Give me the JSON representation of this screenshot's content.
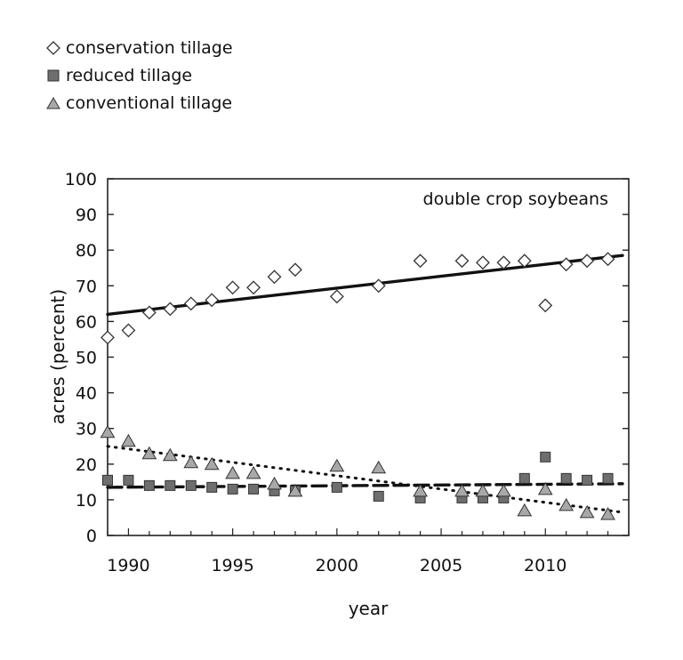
{
  "chart_data": {
    "type": "scatter",
    "title": "",
    "annotation": "double crop soybeans",
    "xlabel": "year",
    "ylabel": "acres (percent)",
    "xlim": [
      1989,
      2014
    ],
    "ylim": [
      0,
      100
    ],
    "xticks": [
      1990,
      1995,
      2000,
      2005,
      2010
    ],
    "yticks": [
      0,
      10,
      20,
      30,
      40,
      50,
      60,
      70,
      80,
      90,
      100
    ],
    "legend_position": "top-left",
    "series": [
      {
        "name": "conservation tillage",
        "marker": "diamond",
        "color": "#ffffff",
        "x": [
          1989,
          1990,
          1991,
          1992,
          1993,
          1994,
          1995,
          1996,
          1997,
          1998,
          2000,
          2002,
          2004,
          2006,
          2007,
          2008,
          2009,
          2010,
          2011,
          2012,
          2013
        ],
        "y": [
          55.5,
          57.5,
          62.5,
          63.5,
          65,
          66,
          69.5,
          69.5,
          72.5,
          74.5,
          67,
          70,
          77,
          77,
          76.5,
          76.5,
          77,
          64.5,
          76,
          77,
          77.5
        ],
        "trend": {
          "style": "solid",
          "y_start": 62,
          "y_end": 78.5
        }
      },
      {
        "name": "reduced tillage",
        "marker": "square",
        "color": "#6e6e6e",
        "x": [
          1989,
          1990,
          1991,
          1992,
          1993,
          1994,
          1995,
          1996,
          1997,
          1998,
          2000,
          2002,
          2004,
          2006,
          2007,
          2008,
          2009,
          2010,
          2011,
          2012,
          2013
        ],
        "y": [
          15.5,
          15.5,
          14,
          14,
          14,
          13.5,
          13,
          13,
          12.5,
          12.5,
          13.5,
          11,
          10.5,
          10.5,
          10.5,
          10.5,
          16,
          22,
          16,
          15.5,
          16
        ],
        "trend": {
          "style": "dashed",
          "y_start": 13.5,
          "y_end": 14.5
        }
      },
      {
        "name": "conventional tillage",
        "marker": "triangle",
        "color": "#a8a8a8",
        "x": [
          1989,
          1990,
          1991,
          1992,
          1993,
          1994,
          1995,
          1996,
          1997,
          1998,
          2000,
          2002,
          2004,
          2006,
          2007,
          2008,
          2009,
          2010,
          2011,
          2012,
          2013
        ],
        "y": [
          29,
          26.5,
          23,
          22.5,
          20.5,
          20,
          17.5,
          17.5,
          14.5,
          12.5,
          19.5,
          19,
          12.5,
          12.5,
          12.5,
          12.5,
          7,
          13,
          8.5,
          6.5,
          6
        ],
        "trend": {
          "style": "dotted",
          "y_start": 25,
          "y_end": 6.5
        }
      }
    ]
  }
}
